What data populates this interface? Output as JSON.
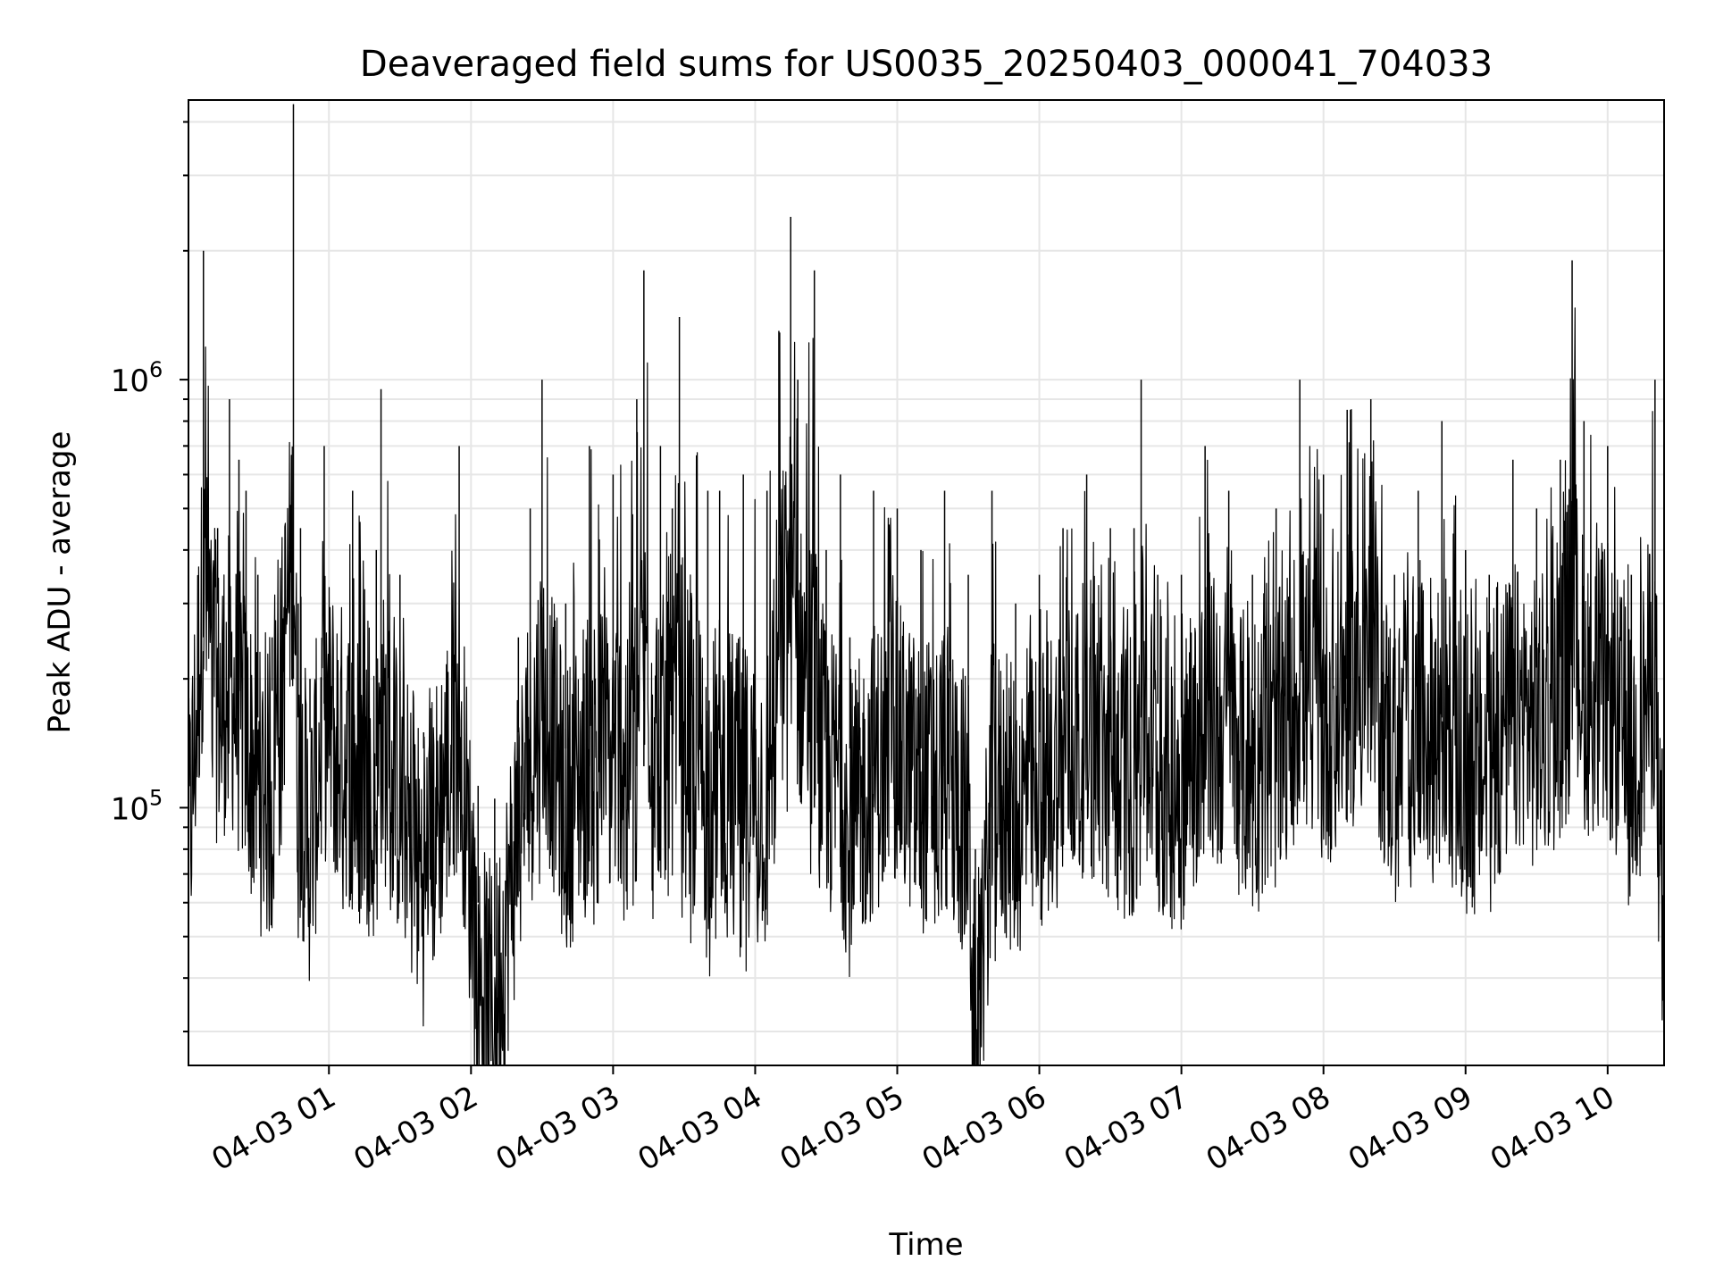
{
  "chart_data": {
    "type": "line",
    "title": "Deaveraged field sums for US0035_20250403_000041_704033",
    "xlabel": "Time",
    "ylabel": "Peak ADU - average",
    "x_range": [
      "2025-04-03 00:00:41",
      "2025-04-03 10:23:50"
    ],
    "y_scale": "log",
    "ylim": [
      25000,
      4500000
    ],
    "y_major_ticks": [
      {
        "value": 100000,
        "base": "10",
        "exp": "5"
      },
      {
        "value": 1000000,
        "base": "10",
        "exp": "6"
      }
    ],
    "x_tick_labels": [
      "04-03 01",
      "04-03 02",
      "04-03 03",
      "04-03 04",
      "04-03 05",
      "04-03 06",
      "04-03 07",
      "04-03 08",
      "04-03 09",
      "04-03 10"
    ],
    "x_ticks": [
      "2025-04-03 01:00",
      "2025-04-03 02:00",
      "2025-04-03 03:00",
      "2025-04-03 04:00",
      "2025-04-03 05:00",
      "2025-04-03 06:00",
      "2025-04-03 07:00",
      "2025-04-03 08:00",
      "2025-04-03 09:00",
      "2025-04-03 10:00"
    ],
    "grid": true,
    "line_color": "#000000",
    "series": [
      {
        "x": [
          "2025-04-03 00:00:41",
          "2025-04-03 00:07",
          "2025-04-03 00:13",
          "2025-04-03 00:18",
          "2025-04-03 00:22",
          "2025-04-03 00:25",
          "2025-04-03 00:30",
          "2025-04-03 00:36",
          "2025-04-03 00:45",
          "2025-04-03 00:47",
          "2025-04-03 00:48",
          "2025-04-03 00:52",
          "2025-04-03 00:58",
          "2025-04-03 01:10",
          "2025-04-03 01:20",
          "2025-04-03 01:22",
          "2025-04-03 01:30",
          "2025-04-03 01:40",
          "2025-04-03 01:55",
          "2025-04-03 02:03",
          "2025-04-03 02:10",
          "2025-04-03 02:20",
          "2025-04-03 02:25",
          "2025-04-03 02:30",
          "2025-04-03 02:40",
          "2025-04-03 02:50",
          "2025-04-03 03:00",
          "2025-04-03 03:10",
          "2025-04-03 03:13",
          "2025-04-03 03:20",
          "2025-04-03 03:25",
          "2025-04-03 03:28",
          "2025-04-03 03:40",
          "2025-04-03 03:45",
          "2025-04-03 03:55",
          "2025-04-03 04:05",
          "2025-04-03 04:10",
          "2025-04-03 04:15",
          "2025-04-03 04:18",
          "2025-04-03 04:25",
          "2025-04-03 04:30",
          "2025-04-03 04:36",
          "2025-04-03 04:40",
          "2025-04-03 04:50",
          "2025-04-03 05:00",
          "2025-04-03 05:10",
          "2025-04-03 05:20",
          "2025-04-03 05:30",
          "2025-04-03 05:33",
          "2025-04-03 05:40",
          "2025-04-03 05:50",
          "2025-04-03 06:00",
          "2025-04-03 06:10",
          "2025-04-03 06:20",
          "2025-04-03 06:30",
          "2025-04-03 06:40",
          "2025-04-03 06:43",
          "2025-04-03 06:50",
          "2025-04-03 07:00",
          "2025-04-03 07:10",
          "2025-04-03 07:20",
          "2025-04-03 07:30",
          "2025-04-03 07:40",
          "2025-04-03 07:50",
          "2025-04-03 08:00",
          "2025-04-03 08:10",
          "2025-04-03 08:20",
          "2025-04-03 08:30",
          "2025-04-03 08:40",
          "2025-04-03 08:50",
          "2025-04-03 09:00",
          "2025-04-03 09:10",
          "2025-04-03 09:20",
          "2025-04-03 09:30",
          "2025-04-03 09:40",
          "2025-04-03 09:45",
          "2025-04-03 09:50",
          "2025-04-03 10:00",
          "2025-04-03 10:10",
          "2025-04-03 10:20",
          "2025-04-03 10:23"
        ],
        "y": [
          120000,
          2000000,
          450000,
          900000,
          650000,
          550000,
          350000,
          250000,
          4400000,
          300000,
          450000,
          200000,
          700000,
          550000,
          400000,
          950000,
          350000,
          150000,
          700000,
          60000,
          45000,
          250000,
          500000,
          1000000,
          300000,
          700000,
          600000,
          900000,
          1800000,
          700000,
          500000,
          1400000,
          550000,
          550000,
          600000,
          550000,
          1300000,
          2400000,
          1000000,
          1800000,
          400000,
          600000,
          250000,
          550000,
          500000,
          400000,
          550000,
          350000,
          33000,
          550000,
          300000,
          350000,
          450000,
          600000,
          450000,
          450000,
          1000000,
          350000,
          350000,
          700000,
          550000,
          350000,
          500000,
          1000000,
          600000,
          850000,
          900000,
          350000,
          550000,
          800000,
          400000,
          350000,
          650000,
          500000,
          650000,
          1900000,
          800000,
          700000,
          350000,
          1000000,
          60000
        ],
        "lo": [
          90000,
          100000,
          120000,
          80000,
          75000,
          70000,
          65000,
          75000,
          80000,
          65000,
          55000,
          60000,
          70000,
          50000,
          50000,
          45000,
          55000,
          55000,
          70000,
          45000,
          42000,
          60000,
          55000,
          70000,
          55000,
          50000,
          55000,
          50000,
          50000,
          55000,
          60000,
          50000,
          38000,
          55000,
          36000,
          40000,
          90000,
          95000,
          80000,
          40000,
          60000,
          45000,
          55000,
          50000,
          70000,
          55000,
          50000,
          45000,
          32000,
          40000,
          55000,
          60000,
          75000,
          70000,
          60000,
          55000,
          65000,
          70000,
          65000,
          70000,
          75000,
          75000,
          70000,
          70000,
          70000,
          80000,
          90000,
          80000,
          70000,
          65000,
          60000,
          75000,
          80000,
          85000,
          90000,
          90000,
          85000,
          90000,
          75000,
          90000,
          55000
        ]
      }
    ]
  }
}
